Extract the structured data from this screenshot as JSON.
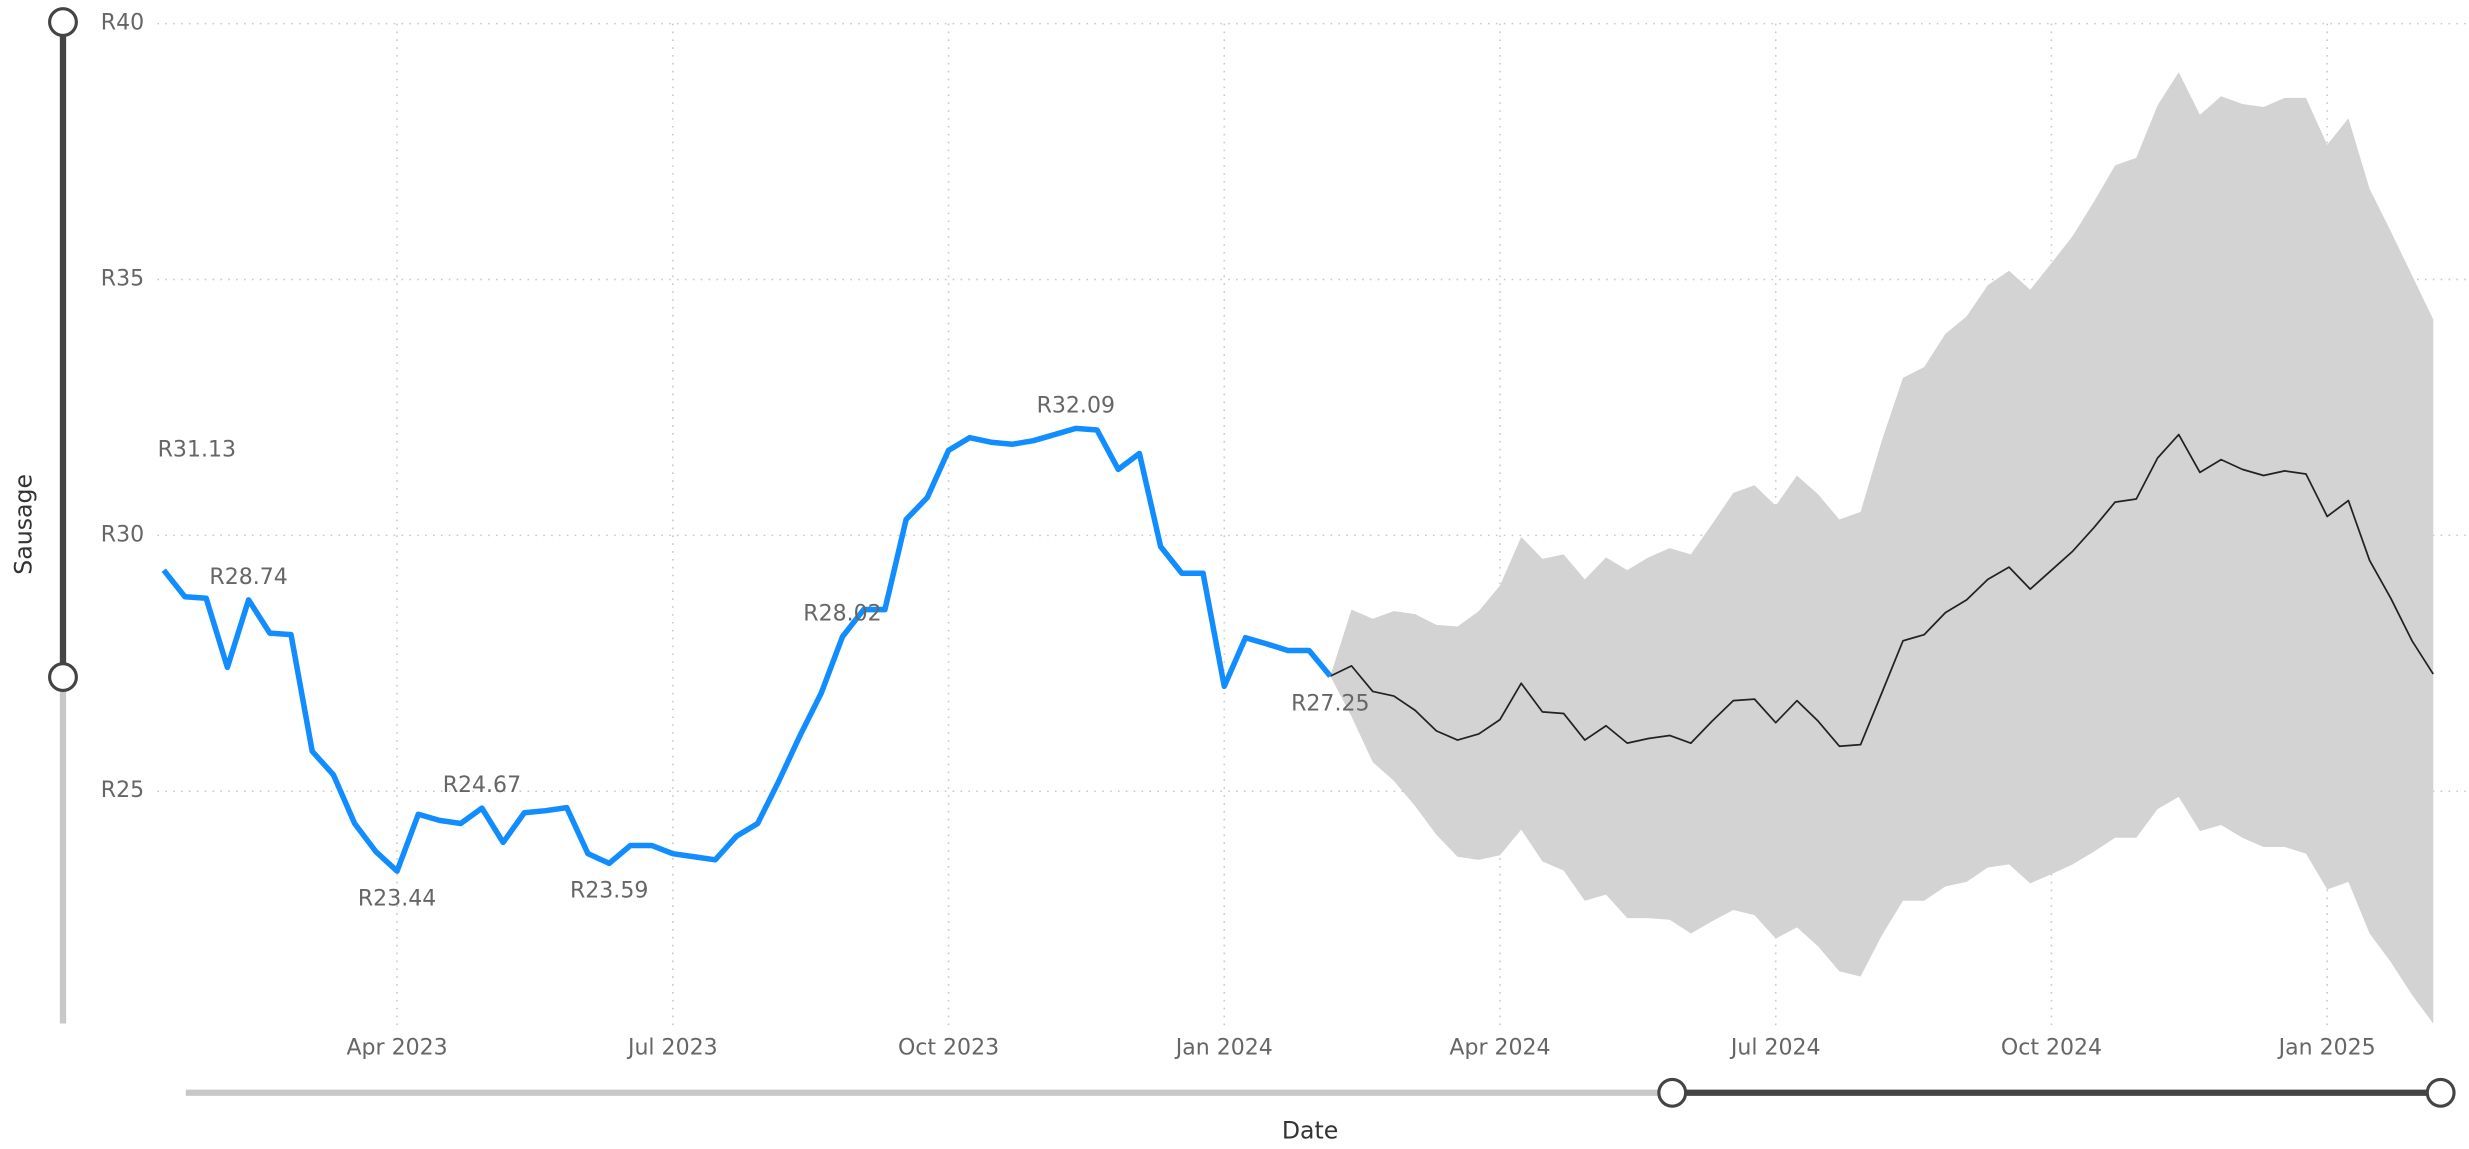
{
  "chart_data": {
    "type": "line",
    "x_label": "Date",
    "y_label": "Sausage",
    "annotations": [
      "R31.13"
    ],
    "categories": [
      null,
      null,
      null,
      null,
      null,
      null,
      null,
      null,
      null,
      null,
      null,
      "Apr 2023",
      null,
      null,
      null,
      null,
      null,
      null,
      null,
      null,
      null,
      null,
      null,
      null,
      "Jul 2023",
      null,
      null,
      null,
      null,
      null,
      null,
      null,
      null,
      null,
      null,
      null,
      null,
      "Oct 2023",
      null,
      null,
      null,
      null,
      null,
      null,
      null,
      null,
      null,
      null,
      null,
      null,
      "Jan 2024",
      null,
      null,
      null,
      null,
      null,
      null,
      null,
      null,
      null,
      null,
      null,
      null,
      "Apr 2024",
      null,
      null,
      null,
      null,
      null,
      null,
      null,
      null,
      null,
      null,
      null,
      null,
      "Jul 2024",
      null,
      null,
      null,
      null,
      null,
      null,
      null,
      null,
      null,
      null,
      null,
      null,
      "Oct 2024",
      null,
      null,
      null,
      null,
      null,
      null,
      null,
      null,
      null,
      null,
      null,
      null,
      "Jan 2025",
      null,
      null,
      null,
      null,
      null
    ],
    "ylim": [
      20.4,
      40
    ],
    "yticks": [
      {
        "value": 25,
        "label": "R25"
      },
      {
        "value": 30,
        "label": "R30"
      },
      {
        "value": 35,
        "label": "R35"
      },
      {
        "value": 40,
        "label": "R40"
      }
    ],
    "grid": true,
    "series": [
      {
        "color": "#118DFF",
        "values": [
          29.32,
          28.8,
          28.77,
          27.42,
          28.74,
          28.09,
          28.06,
          25.78,
          25.32,
          24.37,
          23.82,
          23.44,
          24.55,
          24.43,
          24.37,
          24.67,
          24.0,
          24.58,
          24.62,
          24.68,
          23.78,
          23.59,
          23.94,
          23.94,
          23.78,
          23.72,
          23.66,
          24.12,
          24.37,
          25.2,
          26.09,
          26.92,
          28.02,
          28.55,
          28.55,
          30.31,
          30.74,
          31.66,
          31.91,
          31.82,
          31.78,
          31.85,
          31.97,
          32.09,
          32.06,
          31.29,
          31.6,
          29.78,
          29.26,
          29.26,
          27.05,
          28.0,
          27.88,
          27.75,
          27.75,
          27.25,
          null,
          null,
          null,
          null,
          null,
          null,
          null,
          null,
          null,
          null,
          null,
          null,
          null,
          null,
          null,
          null,
          null,
          null,
          null,
          null,
          null,
          null,
          null,
          null,
          null,
          null,
          null,
          null,
          null,
          null,
          null,
          null,
          null,
          null,
          null,
          null,
          null,
          null,
          null,
          null,
          null,
          null,
          null,
          null,
          null,
          null,
          null,
          null,
          null,
          null,
          null,
          null
        ],
        "value_labels": [
          null,
          null,
          null,
          null,
          "R28.74",
          null,
          null,
          null,
          null,
          null,
          null,
          "R23.44",
          null,
          null,
          null,
          "R24.67",
          null,
          null,
          null,
          null,
          null,
          "R23.59",
          null,
          null,
          null,
          null,
          null,
          null,
          null,
          null,
          null,
          null,
          "R28.02",
          null,
          null,
          null,
          null,
          null,
          null,
          null,
          null,
          null,
          null,
          "R32.09",
          null,
          null,
          null,
          null,
          null,
          null,
          null,
          null,
          null,
          null,
          null,
          "R27.25",
          null,
          null,
          null,
          null,
          null,
          null,
          null,
          null,
          null,
          null,
          null,
          null,
          null,
          null,
          null,
          null,
          null,
          null,
          null,
          null,
          null,
          null,
          null,
          null,
          null,
          null,
          null,
          null,
          null,
          null,
          null,
          null,
          null,
          null,
          null,
          null,
          null,
          null,
          null,
          null,
          null,
          null,
          null,
          null,
          null,
          null,
          null,
          null,
          null,
          null,
          null,
          null
        ]
      },
      {
        "color": "#222222",
        "values": [
          null,
          null,
          null,
          null,
          null,
          null,
          null,
          null,
          null,
          null,
          null,
          null,
          null,
          null,
          null,
          null,
          null,
          null,
          null,
          null,
          null,
          null,
          null,
          null,
          null,
          null,
          null,
          null,
          null,
          null,
          null,
          null,
          null,
          null,
          null,
          null,
          null,
          null,
          null,
          null,
          null,
          null,
          null,
          null,
          null,
          null,
          null,
          null,
          null,
          null,
          null,
          null,
          null,
          null,
          null,
          27.25,
          27.45,
          26.95,
          26.86,
          26.58,
          26.18,
          26.0,
          26.12,
          26.4,
          27.11,
          26.55,
          26.52,
          26.0,
          26.28,
          25.94,
          26.03,
          26.09,
          25.94,
          26.37,
          26.77,
          26.8,
          26.34,
          26.77,
          26.37,
          25.88,
          25.91,
          26.92,
          27.94,
          28.06,
          28.49,
          28.74,
          29.14,
          29.38,
          28.95,
          29.32,
          29.69,
          30.15,
          30.65,
          30.71,
          31.51,
          31.97,
          31.23,
          31.48,
          31.29,
          31.17,
          31.26,
          31.2,
          30.37,
          30.68,
          29.51,
          28.77,
          27.94,
          27.29
        ]
      }
    ],
    "band": {
      "color": "#D3D3D3",
      "upper": [
        null,
        null,
        null,
        null,
        null,
        null,
        null,
        null,
        null,
        null,
        null,
        null,
        null,
        null,
        null,
        null,
        null,
        null,
        null,
        null,
        null,
        null,
        null,
        null,
        null,
        null,
        null,
        null,
        null,
        null,
        null,
        null,
        null,
        null,
        null,
        null,
        null,
        null,
        null,
        null,
        null,
        null,
        null,
        null,
        null,
        null,
        null,
        null,
        null,
        null,
        null,
        null,
        null,
        null,
        null,
        27.25,
        28.55,
        28.37,
        28.52,
        28.46,
        28.25,
        28.22,
        28.52,
        29.02,
        29.97,
        29.54,
        29.63,
        29.14,
        29.57,
        29.32,
        29.57,
        29.75,
        29.63,
        30.22,
        30.83,
        30.98,
        30.58,
        31.17,
        30.8,
        30.31,
        30.46,
        31.85,
        33.08,
        33.29,
        33.94,
        34.28,
        34.89,
        35.17,
        34.8,
        35.32,
        35.85,
        36.52,
        37.23,
        37.38,
        38.4,
        39.05,
        38.22,
        38.58,
        38.43,
        38.37,
        38.55,
        38.55,
        37.63,
        38.15,
        36.77,
        35.94,
        35.08,
        34.22
      ],
      "lower": [
        null,
        null,
        null,
        null,
        null,
        null,
        null,
        null,
        null,
        null,
        null,
        null,
        null,
        null,
        null,
        null,
        null,
        null,
        null,
        null,
        null,
        null,
        null,
        null,
        null,
        null,
        null,
        null,
        null,
        null,
        null,
        null,
        null,
        null,
        null,
        null,
        null,
        null,
        null,
        null,
        null,
        null,
        null,
        null,
        null,
        null,
        null,
        null,
        null,
        null,
        null,
        null,
        null,
        null,
        null,
        27.25,
        26.46,
        25.57,
        25.2,
        24.71,
        24.15,
        23.72,
        23.66,
        23.75,
        24.25,
        23.63,
        23.45,
        22.86,
        22.98,
        22.52,
        22.52,
        22.49,
        22.22,
        22.46,
        22.68,
        22.58,
        22.12,
        22.34,
        21.97,
        21.48,
        21.38,
        22.18,
        22.86,
        22.86,
        23.14,
        23.23,
        23.51,
        23.57,
        23.2,
        23.38,
        23.57,
        23.82,
        24.09,
        24.09,
        24.65,
        24.89,
        24.22,
        24.34,
        24.09,
        23.91,
        23.91,
        23.78,
        23.08,
        23.23,
        22.22,
        21.66,
        21.02,
        20.46
      ]
    }
  }
}
